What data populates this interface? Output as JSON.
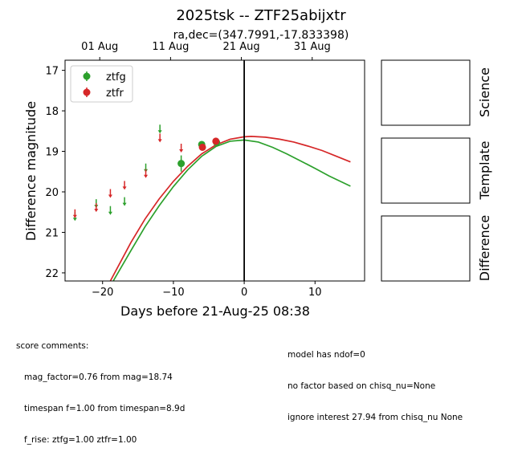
{
  "chart_data": {
    "type": "scatter",
    "title": "2025tsk -- ZTF25abijxtr",
    "subtitle": "ra,dec=(347.7991,-17.833398)",
    "xlabel": "Days before 21-Aug-25 08:38",
    "ylabel": "Difference magnitude",
    "xlim": [
      -25.3,
      17.0
    ],
    "ylim": [
      22.2,
      16.75
    ],
    "inverted_y": true,
    "grid": false,
    "legend_position": "upper-left",
    "x_ticks": [
      -20,
      -10,
      0,
      10
    ],
    "x_tick_labels": [
      "−20",
      "−10",
      "0",
      "10"
    ],
    "y_ticks": [
      17,
      18,
      19,
      20,
      21,
      22
    ],
    "y_tick_labels": [
      "17",
      "18",
      "19",
      "20",
      "21",
      "22"
    ],
    "top_axis": {
      "ticks": [
        -20.4,
        -10.4,
        -0.4,
        9.6
      ],
      "labels": [
        "01 Aug",
        "11 Aug",
        "21 Aug",
        "31 Aug"
      ]
    },
    "vline_x": 0,
    "series": [
      {
        "name": "ztfg",
        "color": "#2ca02c",
        "detections": [
          {
            "x": -8.9,
            "y": 19.3,
            "err": 0.2
          },
          {
            "x": -6.0,
            "y": 18.83,
            "err": 0.07
          },
          {
            "x": -3.9,
            "y": 18.78,
            "err": 0.06
          }
        ],
        "upper_limits": [
          {
            "x": -23.9,
            "y": 20.62
          },
          {
            "x": -20.9,
            "y": 20.3
          },
          {
            "x": -18.9,
            "y": 20.47
          },
          {
            "x": -16.9,
            "y": 20.25
          },
          {
            "x": -13.9,
            "y": 19.42
          },
          {
            "x": -11.9,
            "y": 18.46
          }
        ],
        "model": [
          {
            "x": -18.5,
            "y": 22.2
          },
          {
            "x": -16,
            "y": 21.45
          },
          {
            "x": -14,
            "y": 20.86
          },
          {
            "x": -12,
            "y": 20.34
          },
          {
            "x": -10,
            "y": 19.87
          },
          {
            "x": -8,
            "y": 19.46
          },
          {
            "x": -6,
            "y": 19.12
          },
          {
            "x": -4,
            "y": 18.88
          },
          {
            "x": -2,
            "y": 18.75
          },
          {
            "x": 0,
            "y": 18.72
          },
          {
            "x": 2,
            "y": 18.77
          },
          {
            "x": 4,
            "y": 18.9
          },
          {
            "x": 6,
            "y": 19.06
          },
          {
            "x": 8,
            "y": 19.24
          },
          {
            "x": 10,
            "y": 19.42
          },
          {
            "x": 12,
            "y": 19.61
          },
          {
            "x": 15,
            "y": 19.86
          }
        ]
      },
      {
        "name": "ztfr",
        "color": "#d62728",
        "detections": [
          {
            "x": -5.9,
            "y": 18.9,
            "err": 0.06
          },
          {
            "x": -4.0,
            "y": 18.75,
            "err": 0.05
          }
        ],
        "upper_limits": [
          {
            "x": -23.9,
            "y": 20.55
          },
          {
            "x": -20.9,
            "y": 20.4
          },
          {
            "x": -18.9,
            "y": 20.05
          },
          {
            "x": -16.9,
            "y": 19.85
          },
          {
            "x": -13.9,
            "y": 19.56
          },
          {
            "x": -11.9,
            "y": 18.68
          },
          {
            "x": -8.9,
            "y": 18.93
          }
        ],
        "model": [
          {
            "x": -18.9,
            "y": 22.2
          },
          {
            "x": -16,
            "y": 21.25
          },
          {
            "x": -14,
            "y": 20.67
          },
          {
            "x": -12,
            "y": 20.17
          },
          {
            "x": -10,
            "y": 19.74
          },
          {
            "x": -8,
            "y": 19.37
          },
          {
            "x": -6,
            "y": 19.06
          },
          {
            "x": -4,
            "y": 18.84
          },
          {
            "x": -2,
            "y": 18.7
          },
          {
            "x": 0,
            "y": 18.64
          },
          {
            "x": 1,
            "y": 18.63
          },
          {
            "x": 3,
            "y": 18.65
          },
          {
            "x": 5,
            "y": 18.7
          },
          {
            "x": 7,
            "y": 18.77
          },
          {
            "x": 9,
            "y": 18.87
          },
          {
            "x": 11,
            "y": 18.98
          },
          {
            "x": 13,
            "y": 19.12
          },
          {
            "x": 15,
            "y": 19.26
          }
        ]
      }
    ]
  },
  "side_panels": [
    {
      "label": "Science"
    },
    {
      "label": "Template"
    },
    {
      "label": "Difference"
    }
  ],
  "notes": {
    "left": [
      "score comments:",
      "   mag_factor=0.76 from mag=18.74",
      "   timespan f=1.00 from timespan=8.9d",
      "   f_rise: ztfg=1.00 ztfr=1.00"
    ],
    "right": [
      "model has ndof=0",
      "no factor based on chisq_nu=None",
      "ignore interest 27.94 from chisq_nu None"
    ]
  }
}
